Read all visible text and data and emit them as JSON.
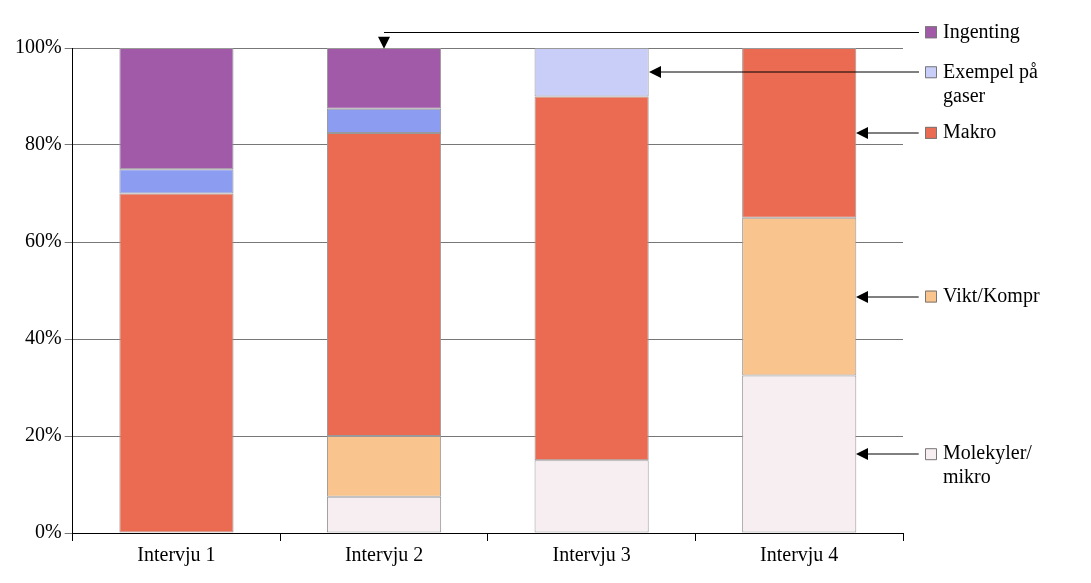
{
  "chart_data": {
    "type": "bar",
    "stacked": true,
    "categories": [
      "Intervju 1",
      "Intervju 2",
      "Intervju 3",
      "Intervju 4"
    ],
    "ylim": [
      0,
      100
    ],
    "yticks": [
      {
        "value": 0,
        "label": "0%"
      },
      {
        "value": 20,
        "label": "20%"
      },
      {
        "value": 40,
        "label": "40%"
      },
      {
        "value": 60,
        "label": "60%"
      },
      {
        "value": 80,
        "label": "80%"
      },
      {
        "value": 100,
        "label": "100%"
      }
    ],
    "grid": "y",
    "legend": "right",
    "series": [
      {
        "name": "Molekyler/mikro",
        "color": "#f6eef0",
        "values": [
          0,
          7.5,
          15,
          32.5
        ]
      },
      {
        "name": "Vikt/Kompr",
        "color": "#f9c48e",
        "values": [
          0,
          12.5,
          0,
          32.5
        ]
      },
      {
        "name": "Makro",
        "color": "#ea6a52",
        "values": [
          70,
          62.5,
          75,
          35
        ]
      },
      {
        "color": "#8c9cf0",
        "values": [
          5,
          5,
          0,
          0
        ]
      },
      {
        "name": "Exempel på gaser",
        "color": "#c8cef8",
        "values": [
          0,
          0,
          10,
          0
        ]
      },
      {
        "name": "Ingenting",
        "color": "#a05aa8",
        "values": [
          25,
          12.5,
          0,
          0
        ]
      }
    ]
  }
}
